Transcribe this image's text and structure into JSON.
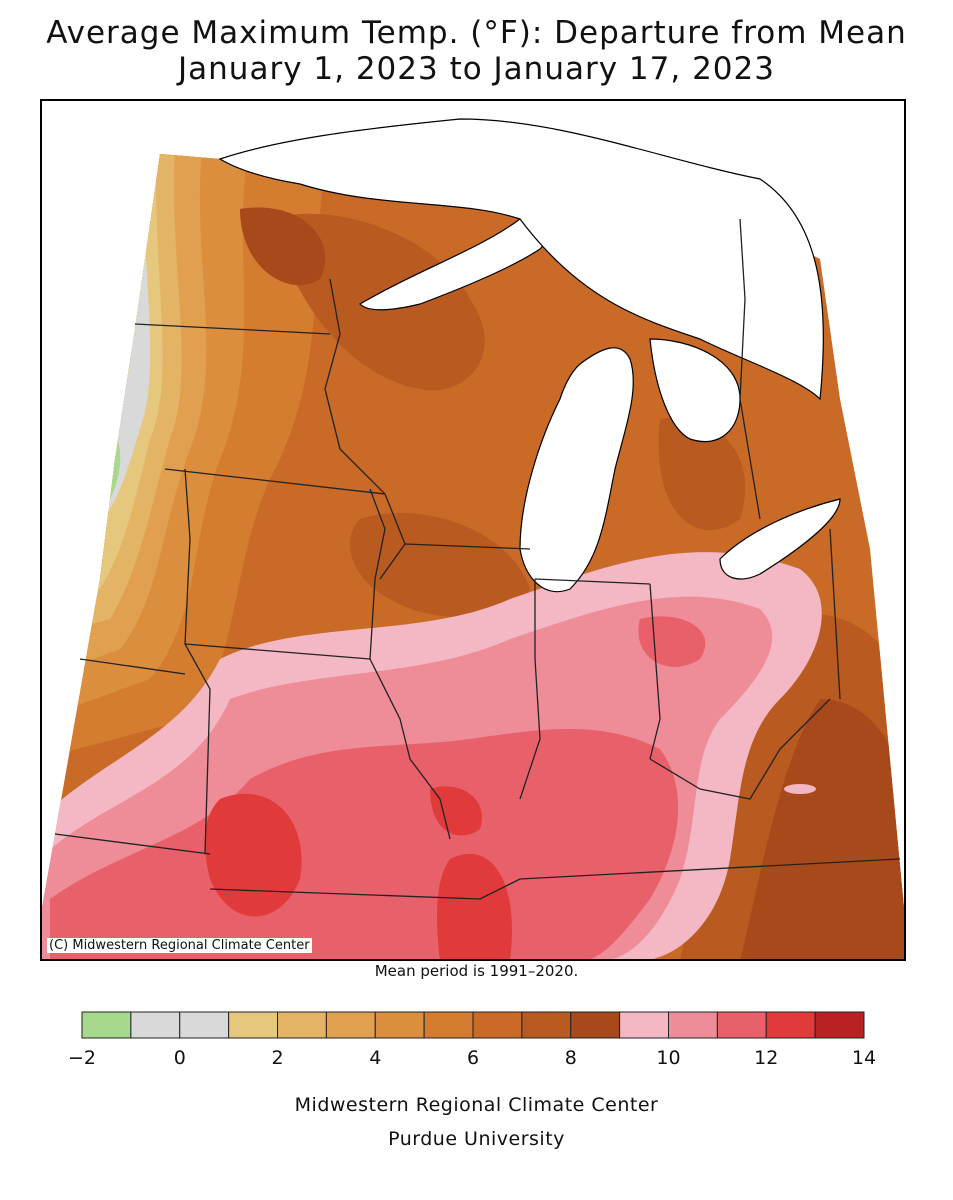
{
  "title": {
    "line1": "Average Maximum Temp. (°F): Departure from Mean",
    "line2": "January 1, 2023 to January 17, 2023"
  },
  "map": {
    "copyright": "(C) Midwestern Regional Climate Center",
    "mean_note": "Mean period is 1991–2020."
  },
  "legend": {
    "bins": [
      {
        "from": -2,
        "to": -1,
        "color": "#a6d98c"
      },
      {
        "from": -1,
        "to": 0,
        "color": "#d9d9d9"
      },
      {
        "from": 0,
        "to": 1,
        "color": "#d9d9d9"
      },
      {
        "from": 1,
        "to": 2,
        "color": "#e6c77e"
      },
      {
        "from": 2,
        "to": 3,
        "color": "#e3b366"
      },
      {
        "from": 3,
        "to": 4,
        "color": "#e0a050"
      },
      {
        "from": 4,
        "to": 5,
        "color": "#dc8e3f"
      },
      {
        "from": 5,
        "to": 6,
        "color": "#d47c2f"
      },
      {
        "from": 6,
        "to": 7,
        "color": "#c96a26"
      },
      {
        "from": 7,
        "to": 8,
        "color": "#b95a20"
      },
      {
        "from": 8,
        "to": 9,
        "color": "#a8491b"
      },
      {
        "from": 9,
        "to": 10,
        "color": "#f4b8c4"
      },
      {
        "from": 10,
        "to": 11,
        "color": "#ee8c98"
      },
      {
        "from": 11,
        "to": 12,
        "color": "#e8606a"
      },
      {
        "from": 12,
        "to": 13,
        "color": "#e03a3a"
      },
      {
        "from": 13,
        "to": 14,
        "color": "#b82222"
      }
    ],
    "tick_labels": [
      "−2",
      "0",
      "2",
      "4",
      "6",
      "8",
      "10",
      "12",
      "14"
    ]
  },
  "footer": {
    "line1": "Midwestern Regional Climate Center",
    "line2": "Purdue University"
  }
}
